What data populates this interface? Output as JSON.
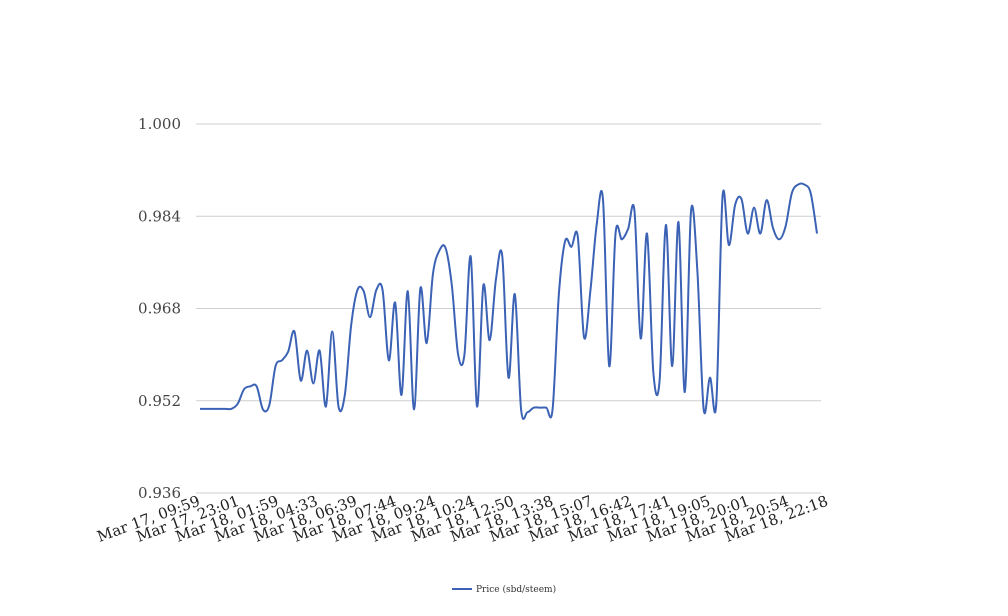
{
  "chart_data": {
    "type": "line",
    "title": "",
    "xlabel": "",
    "ylabel": "",
    "ylim": [
      0.936,
      1.0
    ],
    "yticks": [
      "0.936",
      "0.952",
      "0.968",
      "0.984",
      "1.000"
    ],
    "xticks": [
      "Mar 17, 09:59",
      "Mar 17, 23:01",
      "Mar 18, 01:59",
      "Mar 18, 04:33",
      "Mar 18, 06:39",
      "Mar 18, 07:44",
      "Mar 18, 09:24",
      "Mar 18, 10:24",
      "Mar 18, 12:50",
      "Mar 18, 13:38",
      "Mar 18, 15:07",
      "Mar 18, 16:42",
      "Mar 18, 17:41",
      "Mar 18, 19:05",
      "Mar 18, 20:01",
      "Mar 18, 20:54",
      "Mar 18, 22:18"
    ],
    "grid": true,
    "legend_position": "bottom",
    "series": [
      {
        "name": "Price (sbd/steem)",
        "color": "#3b62b5",
        "values": [
          0.9506,
          0.9506,
          0.9506,
          0.9506,
          0.9506,
          0.9506,
          0.9515,
          0.954,
          0.9545,
          0.9545,
          0.9505,
          0.9512,
          0.958,
          0.959,
          0.9605,
          0.964,
          0.9555,
          0.9607,
          0.955,
          0.9607,
          0.951,
          0.964,
          0.951,
          0.953,
          0.965,
          0.9712,
          0.971,
          0.9665,
          0.9712,
          0.9712,
          0.959,
          0.969,
          0.953,
          0.971,
          0.9505,
          0.9715,
          0.962,
          0.974,
          0.978,
          0.9785,
          0.972,
          0.96,
          0.96,
          0.977,
          0.951,
          0.972,
          0.9625,
          0.973,
          0.9772,
          0.956,
          0.9705,
          0.9505,
          0.95,
          0.9508,
          0.9508,
          0.9508,
          0.9505,
          0.9705,
          0.9797,
          0.9787,
          0.9805,
          0.963,
          0.971,
          0.9825,
          0.987,
          0.958,
          0.981,
          0.98,
          0.9818,
          0.985,
          0.9628,
          0.981,
          0.957,
          0.9555,
          0.9825,
          0.958,
          0.983,
          0.9535,
          0.985,
          0.9745,
          0.9505,
          0.956,
          0.9515,
          0.9875,
          0.979,
          0.986,
          0.987,
          0.981,
          0.9855,
          0.981,
          0.9868,
          0.982,
          0.98,
          0.9822,
          0.988,
          0.9895,
          0.9895,
          0.988,
          0.981
        ]
      }
    ]
  }
}
